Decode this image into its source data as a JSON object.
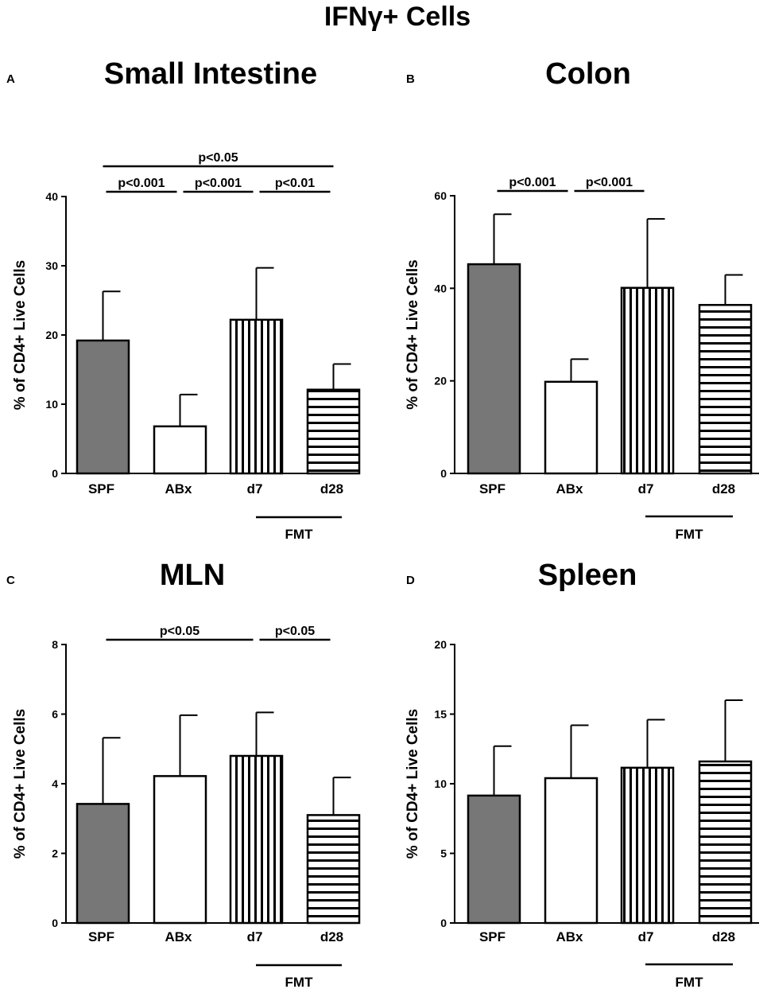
{
  "figure": {
    "title": "IFNγ+ Cells"
  },
  "chart_data": [
    {
      "type": "bar",
      "panel": "A",
      "title": "Small Intestine",
      "xlabel": "",
      "ylabel": "% of CD4+ Live Cells",
      "categories": [
        "SPF",
        "ABx",
        "d7",
        "d28"
      ],
      "patterns": [
        "solid-gray",
        "white",
        "vertical-stripes",
        "horizontal-stripes"
      ],
      "values": [
        19.2,
        6.8,
        22.2,
        12.1
      ],
      "errors": [
        7.1,
        4.6,
        7.5,
        3.7
      ],
      "ylim": [
        0,
        40
      ],
      "yticks": [
        0,
        10,
        20,
        30,
        40
      ],
      "yticklabels": [
        "0",
        "10",
        "20",
        "30",
        "40"
      ],
      "group_label": {
        "text": "FMT",
        "from": 2,
        "to": 3
      },
      "significance": [
        {
          "label": "p<0.001",
          "from": 0,
          "to": 1,
          "level": 1
        },
        {
          "label": "p<0.001",
          "from": 1,
          "to": 2,
          "level": 1
        },
        {
          "label": "p<0.01",
          "from": 2,
          "to": 3,
          "level": 1
        },
        {
          "label": "p<0.05",
          "from": 0,
          "to": 3,
          "level": 2
        }
      ]
    },
    {
      "type": "bar",
      "panel": "B",
      "title": "Colon",
      "xlabel": "",
      "ylabel": "% of CD4+ Live Cells",
      "categories": [
        "SPF",
        "ABx",
        "d7",
        "d28"
      ],
      "patterns": [
        "solid-gray",
        "white",
        "vertical-stripes",
        "horizontal-stripes"
      ],
      "values": [
        45.2,
        19.8,
        40.1,
        36.4
      ],
      "errors": [
        10.8,
        4.9,
        14.9,
        6.5
      ],
      "ylim": [
        0,
        60
      ],
      "yticks": [
        0,
        20,
        40,
        60
      ],
      "yticklabels": [
        "0",
        "20",
        "40",
        "60"
      ],
      "group_label": {
        "text": "FMT",
        "from": 2,
        "to": 3
      },
      "significance": [
        {
          "label": "p<0.001",
          "from": 0,
          "to": 1,
          "level": 1
        },
        {
          "label": "p<0.001",
          "from": 1,
          "to": 2,
          "level": 1
        }
      ]
    },
    {
      "type": "bar",
      "panel": "C",
      "title": "MLN",
      "xlabel": "",
      "ylabel": "% of CD4+ Live Cells",
      "categories": [
        "SPF",
        "ABx",
        "d7",
        "d28"
      ],
      "patterns": [
        "solid-gray",
        "white",
        "vertical-stripes",
        "horizontal-stripes"
      ],
      "values": [
        3.42,
        4.22,
        4.8,
        3.1
      ],
      "errors": [
        1.9,
        1.75,
        1.25,
        1.08
      ],
      "ylim": [
        0,
        8
      ],
      "yticks": [
        0,
        2,
        4,
        6,
        8
      ],
      "yticklabels": [
        "0",
        "2",
        "4",
        "6",
        "8"
      ],
      "group_label": {
        "text": "FMT",
        "from": 2,
        "to": 3
      },
      "significance": [
        {
          "label": "p<0.05",
          "from": 0,
          "to": 2,
          "level": 1
        },
        {
          "label": "p<0.05",
          "from": 2,
          "to": 3,
          "level": 1
        }
      ]
    },
    {
      "type": "bar",
      "panel": "D",
      "title": "Spleen",
      "xlabel": "",
      "ylabel": "% of CD4+ Live Cells",
      "categories": [
        "SPF",
        "ABx",
        "d7",
        "d28"
      ],
      "patterns": [
        "solid-gray",
        "white",
        "vertical-stripes",
        "horizontal-stripes"
      ],
      "values": [
        9.15,
        10.4,
        11.15,
        11.6
      ],
      "errors": [
        3.55,
        3.8,
        3.45,
        4.4
      ],
      "ylim": [
        0,
        20
      ],
      "yticks": [
        0,
        5,
        10,
        15,
        20
      ],
      "yticklabels": [
        "0",
        "5",
        "10",
        "15",
        "20"
      ],
      "group_label": {
        "text": "FMT",
        "from": 2,
        "to": 3
      },
      "significance": []
    }
  ]
}
